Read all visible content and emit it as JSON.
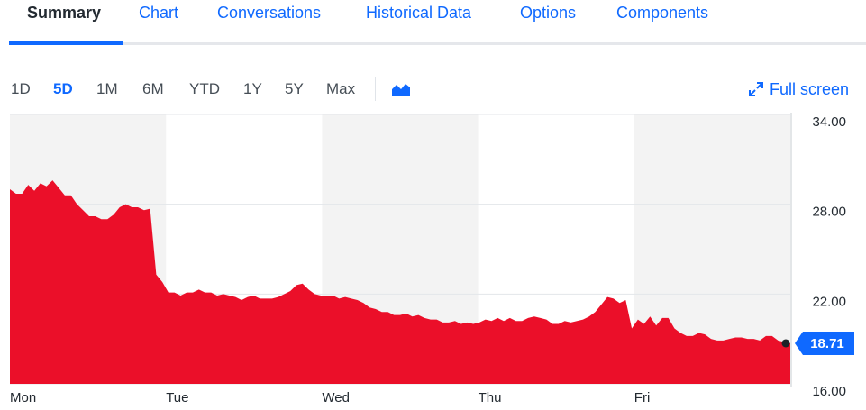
{
  "tabs": [
    {
      "label": "Summary",
      "active": true
    },
    {
      "label": "Chart"
    },
    {
      "label": "Conversations"
    },
    {
      "label": "Historical Data"
    },
    {
      "label": "Options"
    },
    {
      "label": "Components"
    }
  ],
  "ranges": [
    "1D",
    "5D",
    "1M",
    "6M",
    "YTD",
    "1Y",
    "5Y",
    "Max"
  ],
  "active_range": "5D",
  "chart_type_icon": "area-chart-icon",
  "fullscreen": {
    "label": "Full screen",
    "icon": "expand-arrows-icon"
  },
  "colors": {
    "accent": "#0f69ff",
    "area": "#eb0f29",
    "shade": "#f3f3f3",
    "text": "#232a31"
  },
  "current_price": "18.71",
  "chart_data": {
    "type": "area",
    "title": "",
    "xlabel": "",
    "ylabel": "",
    "ylim": [
      16,
      34
    ],
    "yticks": [
      "34.00",
      "28.00",
      "22.00",
      "16.00"
    ],
    "x_day_labels": [
      "Mon",
      "Tue",
      "Wed",
      "Thu",
      "Fri"
    ],
    "shaded_days": [
      "Mon",
      "Wed",
      "Fri"
    ],
    "grid": true,
    "series": [
      {
        "values": [
          29.0,
          28.7,
          28.7,
          29.3,
          28.9,
          29.4,
          29.2,
          29.6,
          29.1,
          28.6,
          28.6,
          28.0,
          27.6,
          27.2,
          27.2,
          27.0,
          27.0,
          27.3,
          27.8,
          28.0,
          27.8,
          27.8,
          27.6,
          27.7,
          23.3,
          22.8,
          22.1,
          22.1,
          21.9,
          22.1,
          22.1,
          22.3,
          22.1,
          22.1,
          21.9,
          22.0,
          21.9,
          21.8,
          21.6,
          21.8,
          21.9,
          21.7,
          21.7,
          21.7,
          21.8,
          22.0,
          22.2,
          22.6,
          22.7,
          22.3,
          22.0,
          21.9,
          21.9,
          21.9,
          21.7,
          21.8,
          21.7,
          21.6,
          21.4,
          21.1,
          21.0,
          20.8,
          20.8,
          20.6,
          20.6,
          20.7,
          20.5,
          20.6,
          20.4,
          20.3,
          20.3,
          20.1,
          20.1,
          20.2,
          20.0,
          20.1,
          20.0,
          20.1,
          20.3,
          20.2,
          20.4,
          20.2,
          20.4,
          20.2,
          20.2,
          20.4,
          20.5,
          20.4,
          20.3,
          20.0,
          20.0,
          20.2,
          20.1,
          20.2,
          20.3,
          20.5,
          20.8,
          21.3,
          21.8,
          21.7,
          21.4,
          21.6,
          19.7,
          20.3,
          20.0,
          20.5,
          19.9,
          20.4,
          20.4,
          19.7,
          19.4,
          19.2,
          19.2,
          19.4,
          19.3,
          19.0,
          18.9,
          18.9,
          19.0,
          19.1,
          19.1,
          19.0,
          19.0,
          18.9,
          19.2,
          19.2,
          18.9,
          18.8,
          18.71
        ]
      }
    ]
  }
}
